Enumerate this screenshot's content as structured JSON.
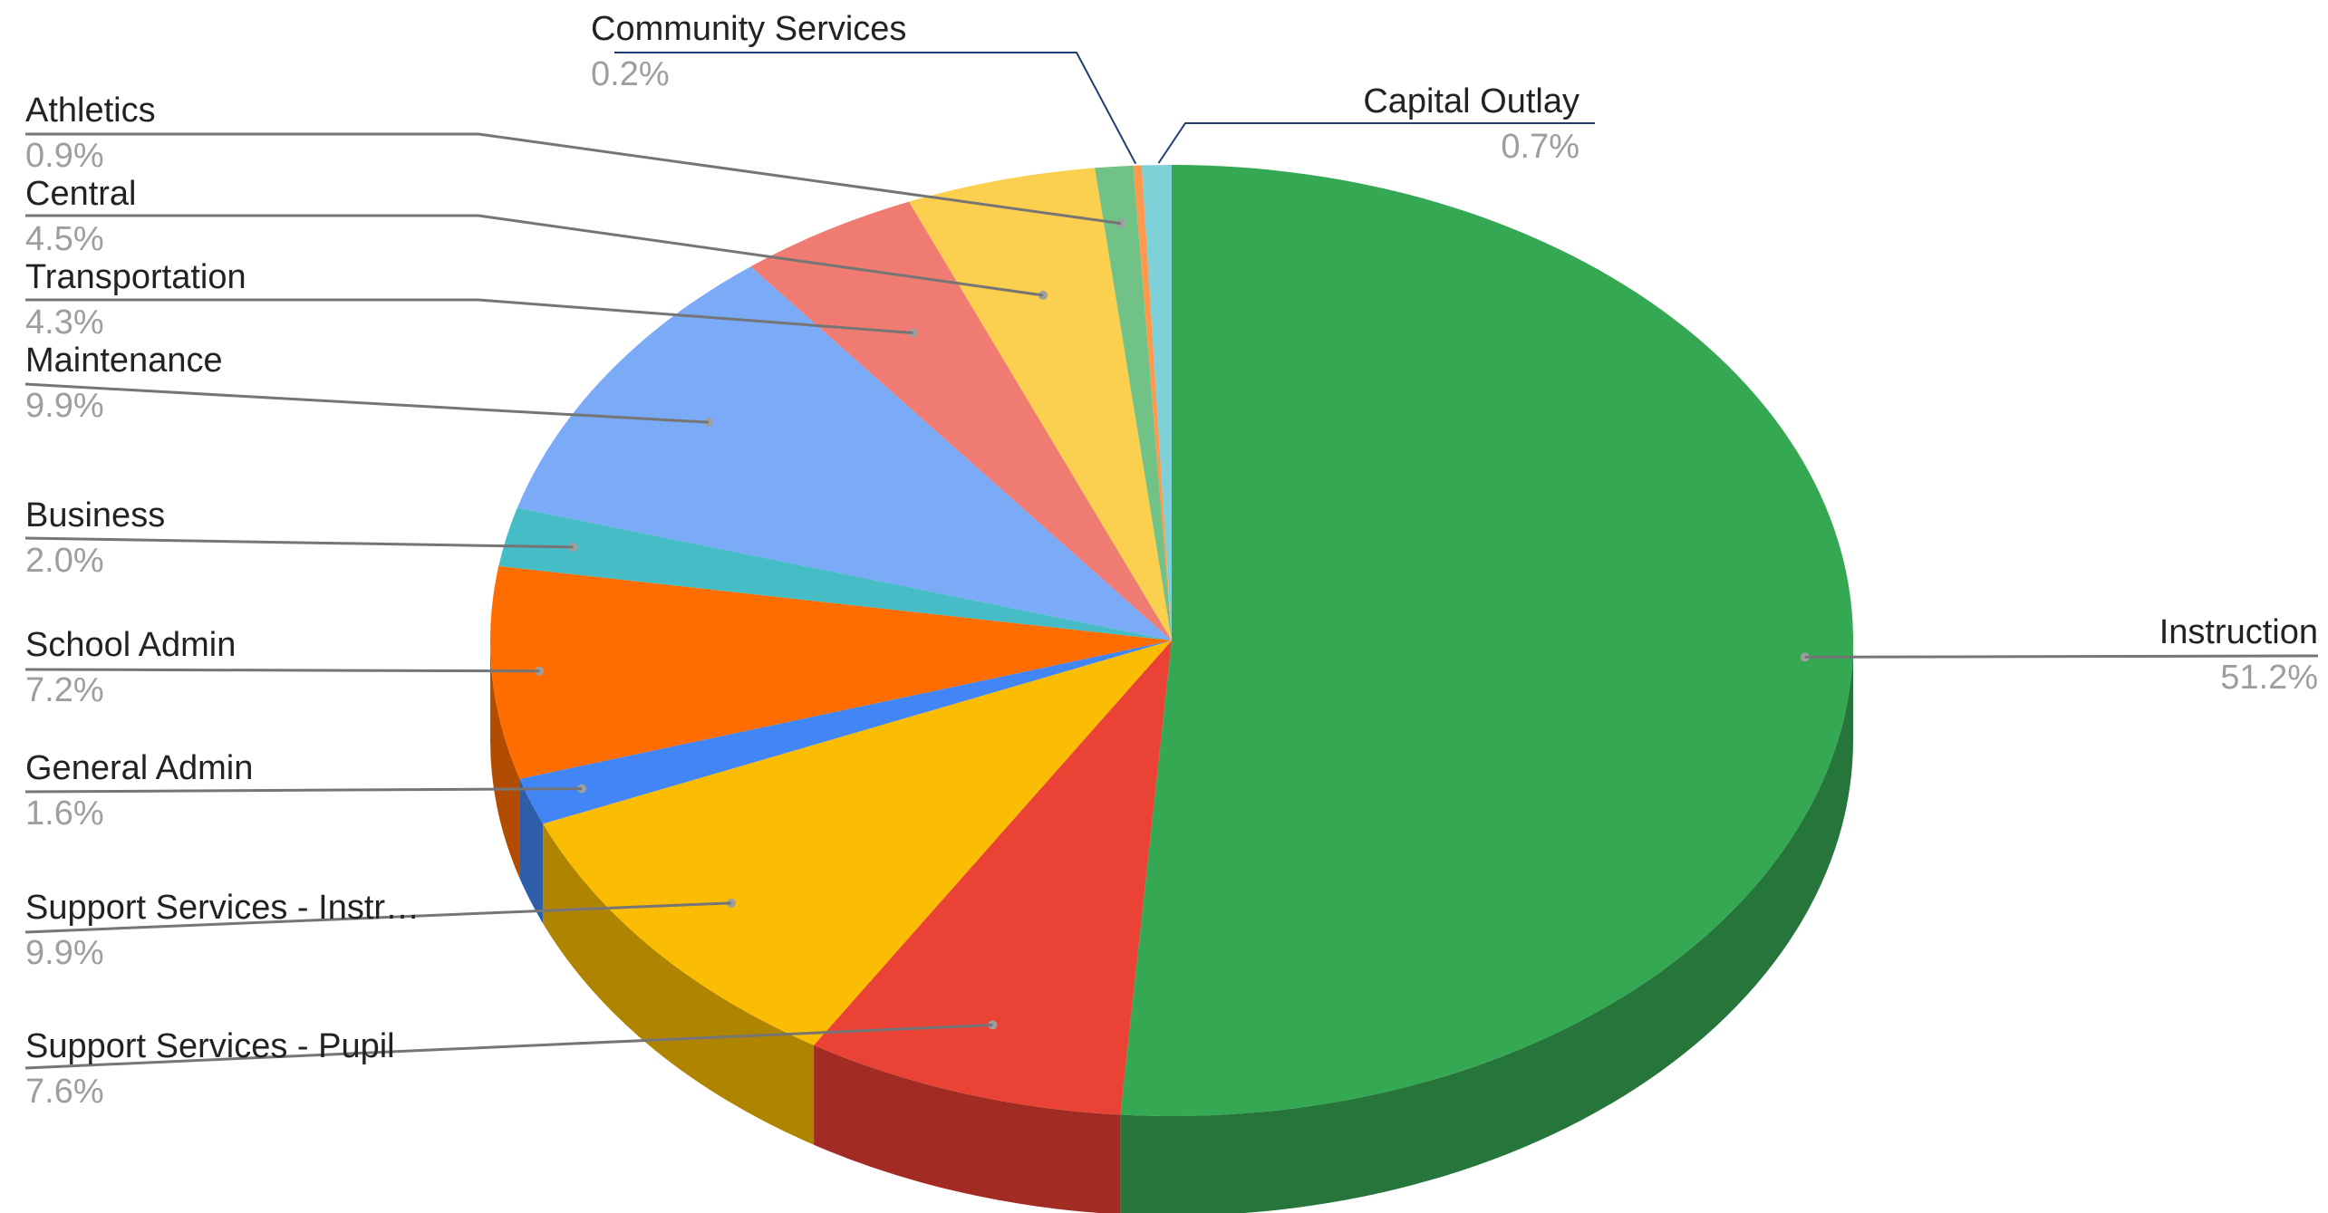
{
  "chart_data": {
    "type": "pie",
    "style": "3d",
    "title": "",
    "legend": "labels",
    "slices": [
      {
        "label": "Instruction",
        "display_label": "Instruction",
        "value": 51.2,
        "pct_text": "51.2%",
        "color": "#34a853",
        "side_color": "#26753a"
      },
      {
        "label": "Support Services - Pupil",
        "display_label": "Support Services - Pupil",
        "value": 7.6,
        "pct_text": "7.6%",
        "color": "#ea4335",
        "side_color": "#a22c24"
      },
      {
        "label": "Support Services - Instr…",
        "display_label": "Support Services - Instr…",
        "value": 9.9,
        "pct_text": "9.9%",
        "color": "#fbbc04",
        "side_color": "#af8400"
      },
      {
        "label": "General Admin",
        "display_label": "General Admin",
        "value": 1.6,
        "pct_text": "1.6%",
        "color": "#4285f4",
        "side_color": "#2e5daa"
      },
      {
        "label": "School Admin",
        "display_label": "School Admin",
        "value": 7.2,
        "pct_text": "7.2%",
        "color": "#ff6d01",
        "side_color": "#b24c00"
      },
      {
        "label": "Business",
        "display_label": "Business",
        "value": 2.0,
        "pct_text": "2.0%",
        "color": "#46bdc6",
        "side_color": "#31848a"
      },
      {
        "label": "Maintenance",
        "display_label": "Maintenance",
        "value": 9.9,
        "pct_text": "9.9%",
        "color": "#7baaf7",
        "side_color": "#5677ad"
      },
      {
        "label": "Transportation",
        "display_label": "Transportation",
        "value": 4.3,
        "pct_text": "4.3%",
        "color": "#f07b72",
        "side_color": "#a8564f"
      },
      {
        "label": "Central",
        "display_label": "Central",
        "value": 4.5,
        "pct_text": "4.5%",
        "color": "#fcd04f",
        "side_color": "#b09137"
      },
      {
        "label": "Athletics",
        "display_label": "Athletics",
        "value": 0.9,
        "pct_text": "0.9%",
        "color": "#71c287",
        "side_color": "#4f885e"
      },
      {
        "label": "Community Services",
        "display_label": "Community Services",
        "value": 0.2,
        "pct_text": "0.2%",
        "color": "#ff994d",
        "side_color": "#b26b36"
      },
      {
        "label": "Capital Outlay",
        "display_label": "Capital Outlay",
        "value": 0.7,
        "pct_text": "0.7%",
        "color": "#7ed1d7",
        "side_color": "#589296"
      }
    ]
  }
}
